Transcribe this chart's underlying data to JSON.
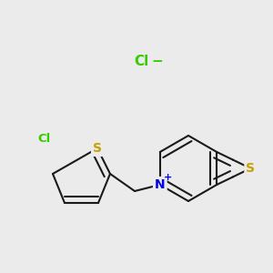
{
  "background_color": "#ebebeb",
  "bond_color": "#1a1a1a",
  "bond_width": 1.5,
  "dbo": 0.055,
  "S_color": "#c8a000",
  "N_color": "#0000ee",
  "Cl_color": "#33cc00",
  "font_size": 9.5,
  "figsize": [
    3.0,
    3.0
  ],
  "dpi": 100,
  "xlim": [
    0,
    300
  ],
  "ylim": [
    0,
    300
  ]
}
